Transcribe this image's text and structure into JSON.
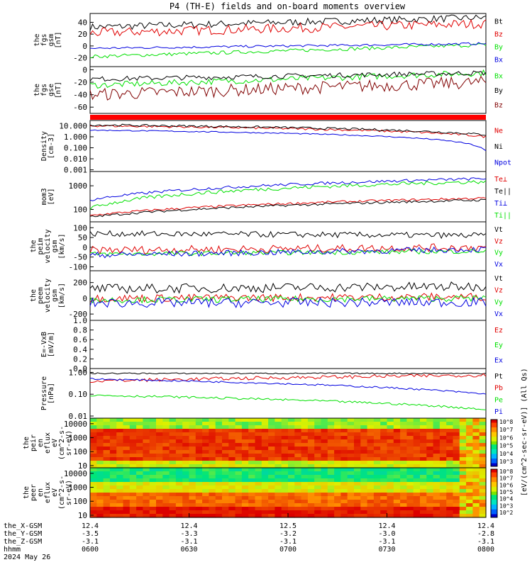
{
  "title": "P4 (TH-E) fields and on-board moments overview",
  "colors": {
    "black": "#000000",
    "red": "#e00000",
    "green": "#00e000",
    "blue": "#0000e0",
    "darkred": "#800000",
    "panel_bg": "#ffffff",
    "thick_bar": "#ff0000"
  },
  "chart_data": [
    {
      "id": "fgs_gsm",
      "type": "line",
      "ylabel": [
        "the",
        "fgs",
        "gsm",
        "[nT]"
      ],
      "ylim": [
        -35,
        55
      ],
      "yticks": [
        "40",
        "20",
        "0",
        "-20"
      ],
      "ytick_values": [
        40,
        20,
        0,
        -20
      ],
      "series": [
        {
          "name": "Bt",
          "color": "#000000",
          "level_start": 32,
          "level_end": 48,
          "noise": 6
        },
        {
          "name": "Bz",
          "color": "#e00000",
          "level_start": 22,
          "level_end": 38,
          "noise": 8
        },
        {
          "name": "By",
          "color": "#00e000",
          "level_start": -18,
          "level_end": 2,
          "noise": 3
        },
        {
          "name": "Bx",
          "color": "#0000e0",
          "level_start": -4,
          "level_end": 4,
          "noise": 2
        }
      ]
    },
    {
      "id": "fgs_gse",
      "type": "line",
      "ylabel": [
        "the",
        "fgs",
        "gse",
        "[nT]"
      ],
      "ylim": [
        -70,
        5
      ],
      "yticks": [
        "0",
        "-20",
        "-40",
        "-60"
      ],
      "ytick_values": [
        0,
        -20,
        -40,
        -60
      ],
      "series": [
        {
          "name": "Bx",
          "color": "#00e000",
          "level_start": -25,
          "level_end": -5,
          "noise": 5
        },
        {
          "name": "By",
          "color": "#000000",
          "level_start": -15,
          "level_end": -5,
          "noise": 4
        },
        {
          "name": "Bz",
          "color": "#800000",
          "level_start": -40,
          "level_end": -20,
          "noise": 10
        }
      ]
    },
    {
      "id": "density",
      "type": "line",
      "scale": "log",
      "ylabel": [
        "Density",
        "[cm-3]"
      ],
      "ylim": [
        0.0007,
        30
      ],
      "yticks": [
        "10.000",
        "1.000",
        "0.100",
        "0.010",
        "0.001"
      ],
      "ytick_values": [
        10,
        1,
        0.1,
        0.01,
        0.001
      ],
      "series": [
        {
          "name": "Ne",
          "color": "#e00000",
          "level_start": 10,
          "level_end": 1,
          "noise": 0.1
        },
        {
          "name": "Ni",
          "color": "#000000",
          "level_start": 12,
          "level_end": 1.5,
          "noise": 0.1
        },
        {
          "name": "Npot",
          "color": "#0000e0",
          "level_start": 4,
          "level_end": 0.05,
          "noise": 0.05
        }
      ]
    },
    {
      "id": "temperature",
      "type": "line",
      "scale": "log",
      "ylabel": [
        "mom3",
        "[eV]"
      ],
      "ylim": [
        30,
        4000
      ],
      "yticks": [
        "1000",
        "100"
      ],
      "ytick_values": [
        1000,
        100
      ],
      "series": [
        {
          "name": "Te⊥",
          "color": "#e00000",
          "level_start": 55,
          "level_end": 300,
          "noise": 0.05
        },
        {
          "name": "Te||",
          "color": "#000000",
          "level_start": 48,
          "level_end": 250,
          "noise": 0.05
        },
        {
          "name": "Ti⊥",
          "color": "#0000e0",
          "level_start": 250,
          "level_end": 2000,
          "noise": 0.06
        },
        {
          "name": "Ti||",
          "color": "#00e000",
          "level_start": 110,
          "level_end": 1500,
          "noise": 0.08
        }
      ]
    },
    {
      "id": "peim_velocity",
      "type": "line",
      "ylabel": [
        "the",
        "peim",
        "velocity",
        "gsm",
        "[km/s]"
      ],
      "ylim": [
        -120,
        130
      ],
      "yticks": [
        "100",
        "50",
        "0",
        "-50",
        "-100"
      ],
      "ytick_values": [
        100,
        50,
        0,
        -50,
        -100
      ],
      "series": [
        {
          "name": "Vt",
          "color": "#000000",
          "level_start": 70,
          "level_end": 60,
          "noise": 15
        },
        {
          "name": "Vz",
          "color": "#e00000",
          "level_start": -15,
          "level_end": 0,
          "noise": 20
        },
        {
          "name": "Vy",
          "color": "#00e000",
          "level_start": -35,
          "level_end": -20,
          "noise": 12
        },
        {
          "name": "Vx",
          "color": "#0000e0",
          "level_start": -40,
          "level_end": -10,
          "noise": 15
        }
      ]
    },
    {
      "id": "peem_velocity",
      "type": "line",
      "ylabel": [
        "the",
        "peem",
        "velocity",
        "gsm",
        "[km/s]"
      ],
      "ylim": [
        -280,
        350
      ],
      "yticks": [
        "200",
        "0",
        "-200"
      ],
      "ytick_values": [
        200,
        0,
        -200
      ],
      "series": [
        {
          "name": "Vt",
          "color": "#000000",
          "level_start": 120,
          "level_end": 150,
          "noise": 60
        },
        {
          "name": "Vz",
          "color": "#e00000",
          "level_start": 0,
          "level_end": 20,
          "noise": 50
        },
        {
          "name": "Vy",
          "color": "#00e000",
          "level_start": -20,
          "level_end": 0,
          "noise": 40
        },
        {
          "name": "Vx",
          "color": "#0000e0",
          "level_start": -60,
          "level_end": -50,
          "noise": 60
        }
      ]
    },
    {
      "id": "efield",
      "type": "line",
      "ylabel": [
        "E=-VxB",
        "[mV/m]"
      ],
      "ylim": [
        0,
        1
      ],
      "yticks": [
        "1.0",
        "0.8",
        "0.6",
        "0.4",
        "0.2",
        "0.0"
      ],
      "ytick_values": [
        1.0,
        0.8,
        0.6,
        0.4,
        0.2,
        0.0
      ],
      "series": [
        {
          "name": "Ez",
          "color": "#e00000"
        },
        {
          "name": "Ey",
          "color": "#00e000"
        },
        {
          "name": "Ex",
          "color": "#0000e0"
        }
      ]
    },
    {
      "id": "pressure",
      "type": "line",
      "scale": "log",
      "ylabel": [
        "Pressure",
        "[nPa]"
      ],
      "ylim": [
        0.008,
        1.5
      ],
      "yticks": [
        "1.00",
        "0.10",
        "0.01"
      ],
      "ytick_values": [
        1,
        0.1,
        0.01
      ],
      "series": [
        {
          "name": "Pt",
          "color": "#000000",
          "level_start": 0.9,
          "level_end": 0.9,
          "noise": 0.03
        },
        {
          "name": "Pb",
          "color": "#e00000",
          "level_start": 0.4,
          "level_end": 0.75,
          "noise": 0.08
        },
        {
          "name": "Pe",
          "color": "#00e000",
          "level_start": 0.09,
          "level_end": 0.02,
          "noise": 0.05
        },
        {
          "name": "Pi",
          "color": "#0000e0",
          "level_start": 0.5,
          "level_end": 0.1,
          "noise": 0.04
        }
      ]
    },
    {
      "id": "peir_flux",
      "type": "heatmap",
      "scale": "log",
      "ylabel": [
        "the",
        "peir",
        "en",
        "eflux",
        "eV",
        "(cm^2-s-",
        "sr-eV)"
      ],
      "ylim": [
        7,
        25000
      ],
      "yticks": [
        "10000",
        "1000",
        "100",
        "10"
      ],
      "ytick_values": [
        10000,
        1000,
        100,
        10
      ]
    },
    {
      "id": "peer_flux",
      "type": "heatmap",
      "scale": "log",
      "ylabel": [
        "the",
        "peer",
        "en",
        "eflux",
        "eV",
        "(cm^2-s-",
        "sr-eV)"
      ],
      "ylim": [
        7,
        25000
      ],
      "yticks": [
        "10000",
        "1000",
        "100",
        "10"
      ],
      "ytick_values": [
        10000,
        1000,
        100,
        10
      ]
    }
  ],
  "colorbar": {
    "label": "[eV/(cm^2-sec-sr-eV)] (All Qs)",
    "ticks_top": [
      "10^8",
      "10^7",
      "10^6",
      "10^5",
      "10^4",
      "10^3"
    ],
    "ticks_bottom": [
      "10^8",
      "10^7",
      "10^6",
      "10^5",
      "10^4",
      "10^3",
      "10^2"
    ]
  },
  "x_axis": {
    "time_range": [
      "0600",
      "0800"
    ],
    "rows": [
      {
        "label": "the_X-GSM",
        "values": [
          "12.4",
          "12.4",
          "12.5",
          "12.4",
          "12.4"
        ]
      },
      {
        "label": "the_Y-GSM",
        "values": [
          "-3.5",
          "-3.3",
          "-3.2",
          "-3.0",
          "-2.8"
        ]
      },
      {
        "label": "the_Z-GSM",
        "values": [
          "-3.1",
          "-3.1",
          "-3.1",
          "-3.1",
          "-3.1"
        ]
      },
      {
        "label": "hhmm",
        "values": [
          "0600",
          "0630",
          "0700",
          "0730",
          "0800"
        ]
      }
    ],
    "date": "2024 May 26"
  }
}
